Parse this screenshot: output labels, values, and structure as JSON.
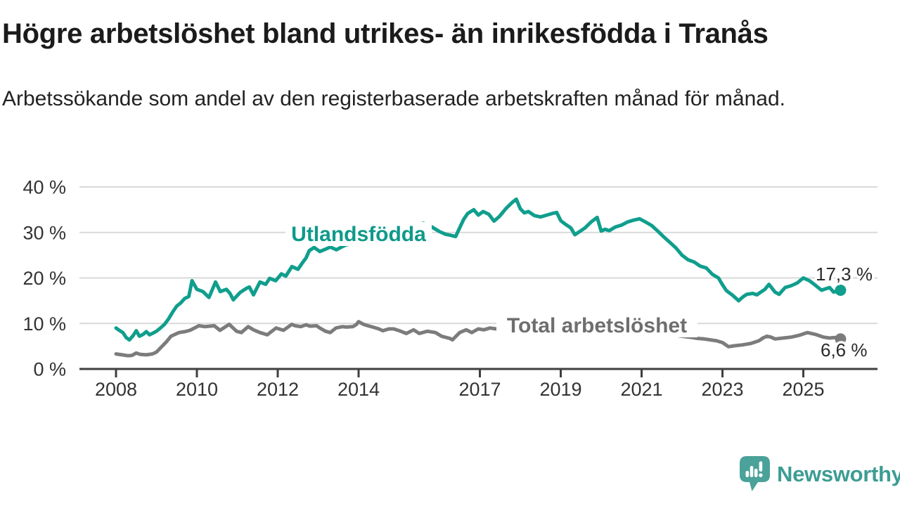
{
  "header": {
    "title": "Högre arbetslöshet bland utrikes- än inrikesfödda i Tranås",
    "subtitle": "Arbetssökande som andel av den registerbaserade arbetskraften månad för månad."
  },
  "chart_data": {
    "type": "line",
    "title": "Högre arbetslöshet bland utrikes- än inrikesfödda i Tranås",
    "subtitle": "Arbetssökande som andel av den registerbaserade arbetskraften månad för månad.",
    "grid": "horizontal",
    "x_axis": {
      "ticks": [
        2008,
        2010,
        2012,
        2014,
        2017,
        2019,
        2021,
        2023,
        2025
      ],
      "labels": [
        "2008",
        "2010",
        "2012",
        "2014",
        "2017",
        "2019",
        "2021",
        "2023",
        "2025"
      ],
      "range": [
        2007.1,
        2026.8
      ]
    },
    "y_axis": {
      "ticks": [
        0,
        10,
        20,
        30,
        40
      ],
      "labels": [
        "0 %",
        "10 %",
        "20 %",
        "30 %",
        "40 %"
      ],
      "range": [
        0,
        40
      ],
      "unit": "%"
    },
    "series": [
      {
        "id": "utlandsfodda",
        "name": "Utlandsfödda",
        "color": "#109E8D",
        "label_color": "#0E9A89",
        "end_value": 17.3,
        "end_label": "17,3 %",
        "points": [
          [
            2008.0,
            9.0
          ],
          [
            2008.08,
            8.5
          ],
          [
            2008.17,
            8.0
          ],
          [
            2008.25,
            6.9
          ],
          [
            2008.33,
            6.4
          ],
          [
            2008.42,
            7.3
          ],
          [
            2008.5,
            8.4
          ],
          [
            2008.58,
            7.2
          ],
          [
            2008.67,
            7.6
          ],
          [
            2008.75,
            8.2
          ],
          [
            2008.83,
            7.5
          ],
          [
            2008.92,
            7.9
          ],
          [
            2009.0,
            8.3
          ],
          [
            2009.1,
            9.0
          ],
          [
            2009.2,
            9.8
          ],
          [
            2009.3,
            11.0
          ],
          [
            2009.4,
            12.5
          ],
          [
            2009.5,
            13.8
          ],
          [
            2009.6,
            14.5
          ],
          [
            2009.7,
            15.5
          ],
          [
            2009.8,
            15.9
          ],
          [
            2009.88,
            19.4
          ],
          [
            2010.0,
            17.5
          ],
          [
            2010.15,
            17.0
          ],
          [
            2010.3,
            15.7
          ],
          [
            2010.46,
            19.1
          ],
          [
            2010.58,
            17.0
          ],
          [
            2010.73,
            17.5
          ],
          [
            2010.82,
            16.6
          ],
          [
            2010.9,
            15.2
          ],
          [
            2011.07,
            16.8
          ],
          [
            2011.22,
            17.7
          ],
          [
            2011.3,
            18.0
          ],
          [
            2011.4,
            16.3
          ],
          [
            2011.56,
            19.1
          ],
          [
            2011.7,
            18.6
          ],
          [
            2011.8,
            19.9
          ],
          [
            2011.95,
            19.4
          ],
          [
            2012.09,
            20.9
          ],
          [
            2012.2,
            20.4
          ],
          [
            2012.35,
            22.5
          ],
          [
            2012.5,
            21.9
          ],
          [
            2012.6,
            23.2
          ],
          [
            2012.7,
            24.4
          ],
          [
            2012.78,
            26.0
          ],
          [
            2012.9,
            26.7
          ],
          [
            2013.04,
            25.8
          ],
          [
            2013.2,
            26.4
          ],
          [
            2013.3,
            26.8
          ],
          [
            2013.45,
            26.2
          ],
          [
            2013.6,
            26.9
          ],
          [
            2013.7,
            27.3
          ],
          [
            2013.9,
            27.6
          ],
          [
            2014.1,
            28.2
          ],
          [
            2014.3,
            28.8
          ],
          [
            2014.5,
            29.3
          ],
          [
            2014.7,
            29.1
          ],
          [
            2014.9,
            29.9
          ],
          [
            2015.1,
            30.6
          ],
          [
            2015.3,
            31.2
          ],
          [
            2015.45,
            31.7
          ],
          [
            2015.6,
            32.0
          ],
          [
            2015.7,
            31.8
          ],
          [
            2015.85,
            31.0
          ],
          [
            2016.0,
            30.2
          ],
          [
            2016.15,
            29.6
          ],
          [
            2016.26,
            29.4
          ],
          [
            2016.4,
            29.1
          ],
          [
            2016.52,
            31.4
          ],
          [
            2016.6,
            32.9
          ],
          [
            2016.7,
            34.2
          ],
          [
            2016.85,
            35.0
          ],
          [
            2016.96,
            33.8
          ],
          [
            2017.08,
            34.6
          ],
          [
            2017.22,
            34.0
          ],
          [
            2017.35,
            32.5
          ],
          [
            2017.48,
            33.5
          ],
          [
            2017.65,
            35.3
          ],
          [
            2017.8,
            36.6
          ],
          [
            2017.9,
            37.3
          ],
          [
            2018.0,
            35.2
          ],
          [
            2018.1,
            34.3
          ],
          [
            2018.2,
            34.6
          ],
          [
            2018.35,
            33.7
          ],
          [
            2018.5,
            33.4
          ],
          [
            2018.65,
            33.8
          ],
          [
            2018.8,
            34.2
          ],
          [
            2018.9,
            34.4
          ],
          [
            2019.0,
            32.6
          ],
          [
            2019.1,
            31.9
          ],
          [
            2019.25,
            31.0
          ],
          [
            2019.35,
            29.5
          ],
          [
            2019.5,
            30.4
          ],
          [
            2019.6,
            31.0
          ],
          [
            2019.75,
            32.3
          ],
          [
            2019.9,
            33.3
          ],
          [
            2020.0,
            30.3
          ],
          [
            2020.1,
            30.7
          ],
          [
            2020.2,
            30.4
          ],
          [
            2020.35,
            31.2
          ],
          [
            2020.5,
            31.6
          ],
          [
            2020.65,
            32.3
          ],
          [
            2020.8,
            32.7
          ],
          [
            2020.95,
            33.0
          ],
          [
            2021.1,
            32.3
          ],
          [
            2021.25,
            31.5
          ],
          [
            2021.4,
            30.3
          ],
          [
            2021.55,
            29.0
          ],
          [
            2021.7,
            27.8
          ],
          [
            2021.85,
            26.6
          ],
          [
            2022.0,
            25.0
          ],
          [
            2022.15,
            24.0
          ],
          [
            2022.3,
            23.5
          ],
          [
            2022.45,
            22.6
          ],
          [
            2022.6,
            22.2
          ],
          [
            2022.75,
            20.8
          ],
          [
            2022.9,
            20.0
          ],
          [
            2023.0,
            18.5
          ],
          [
            2023.1,
            17.2
          ],
          [
            2023.25,
            16.2
          ],
          [
            2023.4,
            15.0
          ],
          [
            2023.5,
            15.8
          ],
          [
            2023.6,
            16.4
          ],
          [
            2023.75,
            16.6
          ],
          [
            2023.85,
            16.3
          ],
          [
            2023.95,
            16.9
          ],
          [
            2024.05,
            17.5
          ],
          [
            2024.15,
            18.6
          ],
          [
            2024.3,
            16.9
          ],
          [
            2024.4,
            16.4
          ],
          [
            2024.55,
            17.9
          ],
          [
            2024.7,
            18.3
          ],
          [
            2024.85,
            18.9
          ],
          [
            2025.0,
            20.0
          ],
          [
            2025.15,
            19.4
          ],
          [
            2025.3,
            18.4
          ],
          [
            2025.45,
            17.3
          ],
          [
            2025.55,
            17.6
          ],
          [
            2025.65,
            17.9
          ],
          [
            2025.75,
            16.9
          ],
          [
            2025.92,
            17.3
          ]
        ]
      },
      {
        "id": "total",
        "name": "Total arbetslöshet",
        "color": "#7C7C7C",
        "label_color": "#6E6E6E",
        "end_value": 6.6,
        "end_label": "6,6 %",
        "points": [
          [
            2008.0,
            3.3
          ],
          [
            2008.15,
            3.1
          ],
          [
            2008.3,
            2.9
          ],
          [
            2008.4,
            3.0
          ],
          [
            2008.5,
            3.5
          ],
          [
            2008.6,
            3.2
          ],
          [
            2008.75,
            3.1
          ],
          [
            2008.9,
            3.3
          ],
          [
            2009.0,
            3.7
          ],
          [
            2009.13,
            4.9
          ],
          [
            2009.25,
            6.0
          ],
          [
            2009.36,
            7.2
          ],
          [
            2009.56,
            8.0
          ],
          [
            2009.7,
            8.2
          ],
          [
            2009.83,
            8.5
          ],
          [
            2010.05,
            9.5
          ],
          [
            2010.2,
            9.3
          ],
          [
            2010.43,
            9.5
          ],
          [
            2010.57,
            8.5
          ],
          [
            2010.8,
            9.8
          ],
          [
            2010.98,
            8.3
          ],
          [
            2011.1,
            8.0
          ],
          [
            2011.27,
            9.3
          ],
          [
            2011.4,
            8.6
          ],
          [
            2011.56,
            8.0
          ],
          [
            2011.74,
            7.5
          ],
          [
            2011.96,
            9.0
          ],
          [
            2012.14,
            8.5
          ],
          [
            2012.35,
            9.8
          ],
          [
            2012.43,
            9.5
          ],
          [
            2012.57,
            9.3
          ],
          [
            2012.7,
            9.7
          ],
          [
            2012.8,
            9.4
          ],
          [
            2012.96,
            9.5
          ],
          [
            2013.04,
            9.0
          ],
          [
            2013.18,
            8.3
          ],
          [
            2013.3,
            8.0
          ],
          [
            2013.44,
            9.0
          ],
          [
            2013.6,
            9.3
          ],
          [
            2013.7,
            9.2
          ],
          [
            2013.86,
            9.3
          ],
          [
            2013.95,
            9.8
          ],
          [
            2014.0,
            10.4
          ],
          [
            2014.12,
            9.8
          ],
          [
            2014.23,
            9.5
          ],
          [
            2014.35,
            9.2
          ],
          [
            2014.5,
            8.8
          ],
          [
            2014.6,
            8.4
          ],
          [
            2014.75,
            8.8
          ],
          [
            2014.87,
            8.8
          ],
          [
            2015.04,
            8.3
          ],
          [
            2015.18,
            7.8
          ],
          [
            2015.36,
            8.6
          ],
          [
            2015.5,
            7.8
          ],
          [
            2015.7,
            8.3
          ],
          [
            2015.9,
            8.0
          ],
          [
            2016.05,
            7.2
          ],
          [
            2016.26,
            6.7
          ],
          [
            2016.32,
            6.4
          ],
          [
            2016.5,
            8.0
          ],
          [
            2016.66,
            8.6
          ],
          [
            2016.8,
            8.0
          ],
          [
            2016.96,
            8.8
          ],
          [
            2017.1,
            8.6
          ],
          [
            2017.25,
            9.0
          ],
          [
            2017.4,
            8.8
          ],
          [
            2017.55,
            9.2
          ],
          [
            2018.0,
            8.9
          ],
          [
            2018.5,
            8.6
          ],
          [
            2019.0,
            8.3
          ],
          [
            2019.5,
            8.1
          ],
          [
            2020.0,
            8.4
          ],
          [
            2020.5,
            8.5
          ],
          [
            2021.0,
            8.2
          ],
          [
            2021.5,
            7.8
          ],
          [
            2022.0,
            7.2
          ],
          [
            2022.25,
            6.9
          ],
          [
            2022.4,
            6.7
          ],
          [
            2022.55,
            6.6
          ],
          [
            2022.7,
            6.4
          ],
          [
            2022.85,
            6.2
          ],
          [
            2023.0,
            5.8
          ],
          [
            2023.15,
            4.9
          ],
          [
            2023.3,
            5.1
          ],
          [
            2023.5,
            5.3
          ],
          [
            2023.7,
            5.6
          ],
          [
            2023.9,
            6.2
          ],
          [
            2024.0,
            6.8
          ],
          [
            2024.1,
            7.2
          ],
          [
            2024.2,
            7.0
          ],
          [
            2024.3,
            6.6
          ],
          [
            2024.5,
            6.8
          ],
          [
            2024.7,
            7.0
          ],
          [
            2024.9,
            7.4
          ],
          [
            2025.0,
            7.7
          ],
          [
            2025.1,
            8.0
          ],
          [
            2025.3,
            7.6
          ],
          [
            2025.5,
            7.0
          ],
          [
            2025.65,
            6.8
          ],
          [
            2025.78,
            6.9
          ],
          [
            2025.92,
            6.6
          ]
        ]
      }
    ]
  },
  "colors": {
    "accent_teal": "#109E8D",
    "series_gray": "#7C7C7C",
    "gridline": "#D9D9D9",
    "axis": "#3F3F3F",
    "logo_teal": "#4AA29A"
  },
  "footer": {
    "logo_text": "Newsworthy"
  }
}
